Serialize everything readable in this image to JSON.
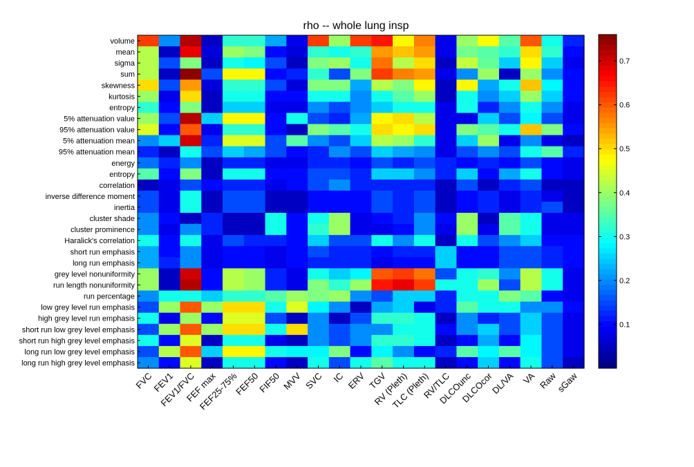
{
  "chart_data": {
    "type": "heatmap",
    "title": "rho -- whole lung insp",
    "x_categories": [
      "FVC",
      "FEV1",
      "FEV1/FVC",
      "FEF max",
      "FEF25-75%",
      "FEF50",
      "FIF50",
      "MVV",
      "SVC",
      "IC",
      "ERV",
      "TGV",
      "RV (Pleth)",
      "TLC (Pleth)",
      "RV/TLC",
      "DLCOunc",
      "DLCOcor",
      "DL/VA",
      "VA",
      "Raw",
      "sGaw"
    ],
    "y_categories": [
      "volume",
      "mean",
      "sigma",
      "sum",
      "skewness",
      "kurtosis",
      "entropy",
      "5% attenuation value",
      "95% attenuation value",
      "5% attenuation mean",
      "95% attenuation mean",
      "energy",
      "entropy",
      "correlation",
      "inverse difference moment",
      "inertia",
      "cluster shade",
      "cluster prominence",
      "Haralick's correlation",
      "short run emphasis",
      "long run emphasis",
      "grey level nonuniformity",
      "run length nonuniformity",
      "run percentage",
      "low grey level run emphasis",
      "high grey level run emphasis",
      "short run low grey level emphasis",
      "short run high grey level emphasis",
      "long run low grey level emphasis",
      "long run high grey level emphasis"
    ],
    "values": [
      [
        0.62,
        0.2,
        0.72,
        0.05,
        0.32,
        0.32,
        0.22,
        0.08,
        0.62,
        0.4,
        0.62,
        0.65,
        0.48,
        0.57,
        0.08,
        0.4,
        0.47,
        0.35,
        0.6,
        0.3,
        0.12
      ],
      [
        0.42,
        0.05,
        0.68,
        0.07,
        0.4,
        0.38,
        0.1,
        0.07,
        0.32,
        0.3,
        0.32,
        0.55,
        0.52,
        0.55,
        0.08,
        0.37,
        0.35,
        0.32,
        0.5,
        0.32,
        0.1
      ],
      [
        0.42,
        0.15,
        0.38,
        0.05,
        0.3,
        0.28,
        0.15,
        0.05,
        0.38,
        0.4,
        0.3,
        0.58,
        0.42,
        0.5,
        0.05,
        0.43,
        0.36,
        0.25,
        0.48,
        0.25,
        0.08
      ],
      [
        0.42,
        0.05,
        0.75,
        0.15,
        0.48,
        0.48,
        0.1,
        0.12,
        0.32,
        0.15,
        0.38,
        0.62,
        0.57,
        0.55,
        0.08,
        0.2,
        0.4,
        0.05,
        0.4,
        0.2,
        0.1
      ],
      [
        0.5,
        0.15,
        0.55,
        0.07,
        0.32,
        0.32,
        0.15,
        0.07,
        0.38,
        0.38,
        0.22,
        0.42,
        0.38,
        0.48,
        0.05,
        0.48,
        0.22,
        0.3,
        0.52,
        0.28,
        0.1
      ],
      [
        0.4,
        0.08,
        0.5,
        0.05,
        0.3,
        0.3,
        0.1,
        0.1,
        0.3,
        0.3,
        0.2,
        0.3,
        0.35,
        0.4,
        0.05,
        0.3,
        0.2,
        0.25,
        0.4,
        0.25,
        0.1
      ],
      [
        0.32,
        0.1,
        0.38,
        0.05,
        0.25,
        0.25,
        0.08,
        0.08,
        0.2,
        0.15,
        0.2,
        0.25,
        0.3,
        0.3,
        0.08,
        0.3,
        0.12,
        0.2,
        0.3,
        0.2,
        0.08
      ],
      [
        0.4,
        0.15,
        0.72,
        0.25,
        0.48,
        0.48,
        0.1,
        0.3,
        0.15,
        0.12,
        0.22,
        0.48,
        0.5,
        0.42,
        0.08,
        0.08,
        0.25,
        0.15,
        0.28,
        0.15,
        0.08
      ],
      [
        0.45,
        0.1,
        0.6,
        0.08,
        0.32,
        0.32,
        0.1,
        0.05,
        0.38,
        0.35,
        0.3,
        0.5,
        0.48,
        0.5,
        0.08,
        0.38,
        0.35,
        0.3,
        0.52,
        0.38,
        0.1
      ],
      [
        0.2,
        0.25,
        0.7,
        0.12,
        0.45,
        0.45,
        0.15,
        0.35,
        0.2,
        0.15,
        0.25,
        0.42,
        0.4,
        0.32,
        0.08,
        0.25,
        0.4,
        0.08,
        0.2,
        0.08,
        0.05
      ],
      [
        0.12,
        0.05,
        0.3,
        0.15,
        0.25,
        0.22,
        0.15,
        0.1,
        0.12,
        0.2,
        0.15,
        0.25,
        0.22,
        0.2,
        0.08,
        0.15,
        0.2,
        0.15,
        0.3,
        0.35,
        0.12
      ],
      [
        0.18,
        0.12,
        0.2,
        0.05,
        0.12,
        0.12,
        0.08,
        0.08,
        0.12,
        0.12,
        0.1,
        0.15,
        0.12,
        0.15,
        0.12,
        0.1,
        0.12,
        0.1,
        0.15,
        0.1,
        0.08
      ],
      [
        0.35,
        0.1,
        0.38,
        0.05,
        0.3,
        0.3,
        0.1,
        0.1,
        0.15,
        0.15,
        0.12,
        0.25,
        0.25,
        0.2,
        0.12,
        0.25,
        0.1,
        0.22,
        0.3,
        0.1,
        0.08
      ],
      [
        0.05,
        0.08,
        0.15,
        0.1,
        0.12,
        0.12,
        0.08,
        0.1,
        0.15,
        0.2,
        0.12,
        0.12,
        0.12,
        0.12,
        0.05,
        0.15,
        0.05,
        0.12,
        0.15,
        0.05,
        0.05
      ],
      [
        0.15,
        0.08,
        0.3,
        0.05,
        0.15,
        0.15,
        0.05,
        0.05,
        0.1,
        0.1,
        0.1,
        0.15,
        0.12,
        0.15,
        0.05,
        0.1,
        0.12,
        0.08,
        0.12,
        0.08,
        0.05
      ],
      [
        0.15,
        0.08,
        0.3,
        0.05,
        0.15,
        0.15,
        0.05,
        0.05,
        0.1,
        0.1,
        0.1,
        0.15,
        0.12,
        0.15,
        0.05,
        0.1,
        0.12,
        0.08,
        0.12,
        0.15,
        0.05
      ],
      [
        0.2,
        0.1,
        0.05,
        0.12,
        0.05,
        0.05,
        0.3,
        0.1,
        0.3,
        0.4,
        0.08,
        0.1,
        0.12,
        0.2,
        0.1,
        0.4,
        0.05,
        0.35,
        0.3,
        0.08,
        0.08
      ],
      [
        0.2,
        0.08,
        0.2,
        0.12,
        0.05,
        0.05,
        0.3,
        0.1,
        0.32,
        0.4,
        0.08,
        0.08,
        0.1,
        0.2,
        0.08,
        0.4,
        0.08,
        0.35,
        0.3,
        0.08,
        0.08
      ],
      [
        0.3,
        0.1,
        0.3,
        0.08,
        0.15,
        0.12,
        0.12,
        0.1,
        0.25,
        0.15,
        0.15,
        0.3,
        0.2,
        0.3,
        0.05,
        0.3,
        0.15,
        0.2,
        0.25,
        0.1,
        0.1
      ],
      [
        0.22,
        0.1,
        0.2,
        0.08,
        0.1,
        0.1,
        0.08,
        0.1,
        0.15,
        0.12,
        0.12,
        0.1,
        0.12,
        0.12,
        0.25,
        0.1,
        0.1,
        0.15,
        0.15,
        0.12,
        0.1
      ],
      [
        0.22,
        0.12,
        0.2,
        0.08,
        0.1,
        0.1,
        0.08,
        0.1,
        0.12,
        0.12,
        0.12,
        0.08,
        0.1,
        0.1,
        0.25,
        0.1,
        0.1,
        0.15,
        0.15,
        0.12,
        0.1
      ],
      [
        0.4,
        0.05,
        0.7,
        0.1,
        0.42,
        0.4,
        0.12,
        0.08,
        0.3,
        0.25,
        0.28,
        0.6,
        0.62,
        0.58,
        0.15,
        0.3,
        0.32,
        0.2,
        0.42,
        0.3,
        0.08
      ],
      [
        0.4,
        0.05,
        0.72,
        0.1,
        0.42,
        0.4,
        0.12,
        0.08,
        0.38,
        0.32,
        0.4,
        0.65,
        0.68,
        0.62,
        0.3,
        0.3,
        0.4,
        0.15,
        0.42,
        0.3,
        0.08
      ],
      [
        0.2,
        0.3,
        0.3,
        0.25,
        0.32,
        0.32,
        0.35,
        0.4,
        0.38,
        0.4,
        0.2,
        0.15,
        0.25,
        0.25,
        0.12,
        0.3,
        0.3,
        0.38,
        0.35,
        0.1,
        0.08
      ],
      [
        0.15,
        0.4,
        0.6,
        0.4,
        0.5,
        0.5,
        0.3,
        0.45,
        0.28,
        0.2,
        0.05,
        0.22,
        0.25,
        0.08,
        0.12,
        0.35,
        0.3,
        0.3,
        0.2,
        0.2,
        0.1
      ],
      [
        0.3,
        0.08,
        0.4,
        0.1,
        0.45,
        0.45,
        0.15,
        0.05,
        0.2,
        0.05,
        0.15,
        0.32,
        0.32,
        0.3,
        0.05,
        0.2,
        0.12,
        0.15,
        0.25,
        0.15,
        0.08
      ],
      [
        0.15,
        0.4,
        0.6,
        0.4,
        0.5,
        0.5,
        0.3,
        0.5,
        0.2,
        0.15,
        0.2,
        0.2,
        0.3,
        0.3,
        0.1,
        0.2,
        0.25,
        0.15,
        0.25,
        0.15,
        0.08
      ],
      [
        0.3,
        0.1,
        0.45,
        0.05,
        0.3,
        0.3,
        0.08,
        0.05,
        0.2,
        0.15,
        0.2,
        0.32,
        0.32,
        0.3,
        0.05,
        0.1,
        0.22,
        0.1,
        0.28,
        0.15,
        0.08
      ],
      [
        0.15,
        0.42,
        0.6,
        0.25,
        0.48,
        0.48,
        0.3,
        0.28,
        0.28,
        0.38,
        0.1,
        0.28,
        0.2,
        0.1,
        0.12,
        0.35,
        0.28,
        0.35,
        0.28,
        0.15,
        0.08
      ],
      [
        0.2,
        0.1,
        0.45,
        0.05,
        0.3,
        0.3,
        0.1,
        0.05,
        0.3,
        0.15,
        0.3,
        0.35,
        0.3,
        0.3,
        0.05,
        0.1,
        0.25,
        0.1,
        0.3,
        0.15,
        0.05
      ]
    ],
    "colorbar": {
      "colormap": "jet",
      "range": [
        0.0,
        0.76
      ],
      "ticks": [
        "0.1",
        "0.2",
        "0.3",
        "0.4",
        "0.5",
        "0.6",
        "0.7"
      ]
    },
    "grid": false,
    "legend": "colorbar right"
  }
}
